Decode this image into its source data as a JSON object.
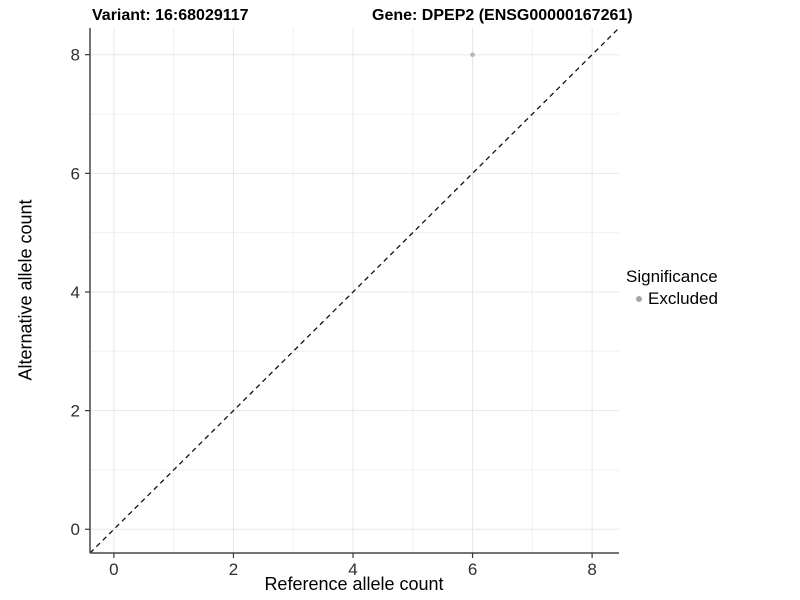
{
  "header": {
    "variant_title": "Variant: 16:68029117",
    "gene_title": "Gene: DPEP2 (ENSG00000167261)"
  },
  "chart_data": {
    "type": "scatter",
    "title_left": "Variant: 16:68029117",
    "title_right": "Gene: DPEP2 (ENSG00000167261)",
    "xlabel": "Reference allele count",
    "ylabel": "Alternative allele count",
    "xlim": [
      -0.4,
      8.45
    ],
    "ylim": [
      -0.4,
      8.45
    ],
    "xticks": [
      0,
      2,
      4,
      6,
      8
    ],
    "yticks": [
      0,
      2,
      4,
      6,
      8
    ],
    "minor_gridlines_x": [
      1,
      3,
      5,
      7
    ],
    "minor_gridlines_y": [
      1,
      3,
      5,
      7
    ],
    "grid": true,
    "identity_line": {
      "style": "dashed",
      "slope": 1,
      "intercept": 0,
      "from": [
        -0.4,
        -0.4
      ],
      "to": [
        8.45,
        8.45
      ]
    },
    "series": [
      {
        "name": "Excluded",
        "color": "#b5b5b5",
        "point_radius": 2.3,
        "points": [
          {
            "x": 6,
            "y": 8
          }
        ]
      }
    ],
    "legend": {
      "title": "Significance",
      "position": "right",
      "items": [
        {
          "label": "Excluded",
          "color": "#a6a6a6"
        }
      ]
    }
  },
  "colors": {
    "background": "#ffffff",
    "grid_major": "#e7e7e7",
    "grid_minor": "#f0f0f0",
    "axis_line": "#474747",
    "tick_mark": "#383838",
    "tick_label": "#303030",
    "identity_line": "#111111"
  }
}
